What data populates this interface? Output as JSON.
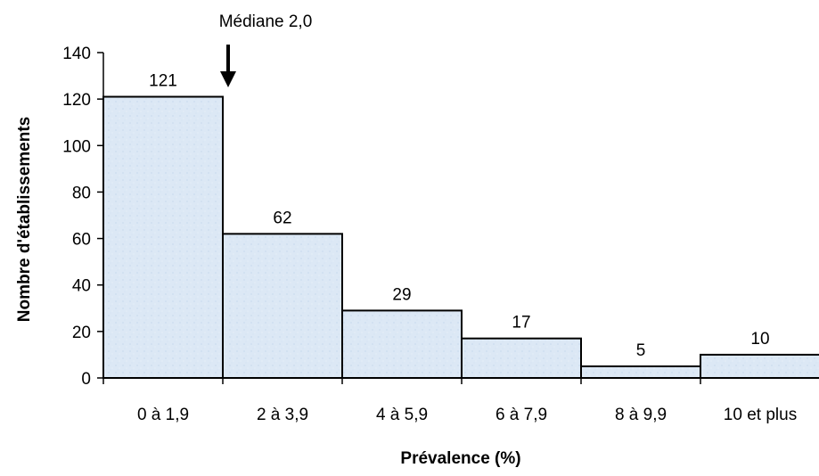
{
  "chart_data": {
    "type": "bar",
    "categories": [
      "0 à 1,9",
      "2 à 3,9",
      "4 à 5,9",
      "6 à 7,9",
      "8 à 9,9",
      "10 et plus"
    ],
    "values": [
      121,
      62,
      29,
      17,
      5,
      10
    ],
    "data_labels": [
      "121",
      "62",
      "29",
      "17",
      "5",
      "10"
    ],
    "xlabel": "Prévalence (%)",
    "ylabel": "Nombre d'établissements",
    "ylim": [
      0,
      140
    ],
    "yticks": [
      "0",
      "20",
      "40",
      "60",
      "80",
      "100",
      "120",
      "140"
    ],
    "annotation": "Médiane 2,0",
    "bar_color": "#dce8f5",
    "bar_edge_color": "#000000",
    "grid": false,
    "legend": "none"
  }
}
